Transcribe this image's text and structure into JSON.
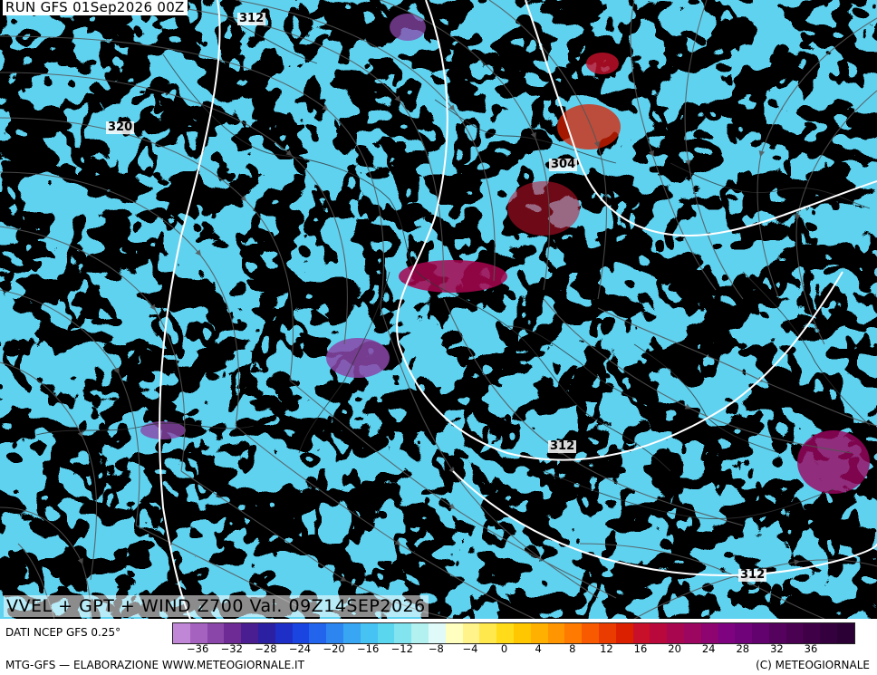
{
  "header": {
    "run_label": "RUN GFS 01Sep2026 00Z"
  },
  "map": {
    "title": "VVEL + GPT + WIND Z700 Val. 09Z14SEP2026",
    "isohypse_labels": [
      "312",
      "320",
      "304",
      "312",
      "312"
    ]
  },
  "legend": {
    "source": "DATI NCEP GFS 0.25°",
    "ticks": [
      "−36",
      "−32",
      "−28",
      "−24",
      "−20",
      "−16",
      "−12",
      "−8",
      "−4",
      "0",
      "4",
      "8",
      "12",
      "16",
      "20",
      "24",
      "28",
      "32",
      "36"
    ],
    "colors": [
      "#c087d7",
      "#a562bf",
      "#8a46a8",
      "#6e2b95",
      "#4a1e91",
      "#2b1fa2",
      "#1e2fc8",
      "#1b45e0",
      "#2265ec",
      "#2d86f0",
      "#38a6f3",
      "#46c2f3",
      "#5bd6ef",
      "#82e4ef",
      "#b3f0f0",
      "#e0fafa",
      "#ffffc0",
      "#fff38a",
      "#ffe84d",
      "#ffdb1a",
      "#ffc700",
      "#ffb000",
      "#ff9500",
      "#ff7a00",
      "#f75a00",
      "#ea3c00",
      "#db2000",
      "#c8102a",
      "#b8083c",
      "#a8064f",
      "#9c0560",
      "#8e0470",
      "#7e0380",
      "#70027a",
      "#62026e",
      "#55025e",
      "#4a0152",
      "#3f0048",
      "#35003e",
      "#2b0035"
    ]
  },
  "footer": {
    "left": "MTG-GFS — ELABORAZIONE WWW.METEOGIORNALE.IT",
    "right": "(C) METEOGIORNALE"
  }
}
